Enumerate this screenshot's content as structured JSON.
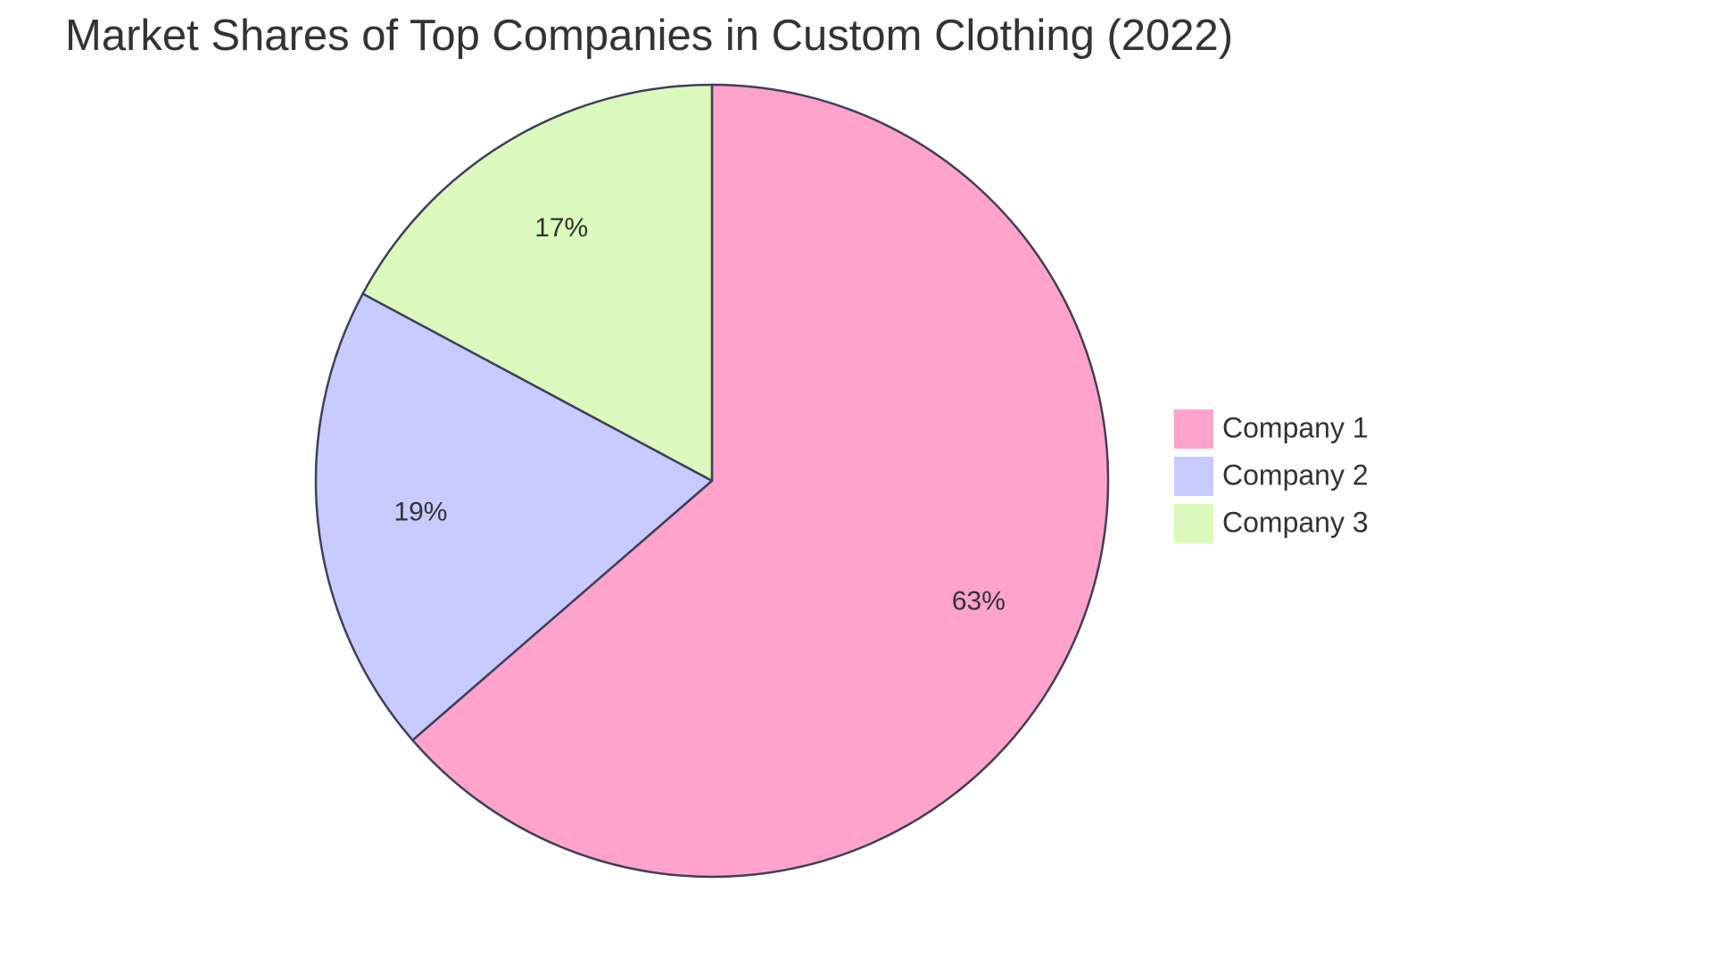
{
  "chart_data": {
    "type": "pie",
    "title": "Market Shares of Top Companies in Custom Clothing (2022)",
    "categories": [
      "Company 1",
      "Company 2",
      "Company 3"
    ],
    "values": [
      63,
      19,
      17
    ],
    "value_labels": [
      "63%",
      "19%",
      "17%"
    ],
    "colors": [
      "#ffa3cc",
      "#c8cbff",
      "#dbf9bc"
    ],
    "legend": "right"
  }
}
